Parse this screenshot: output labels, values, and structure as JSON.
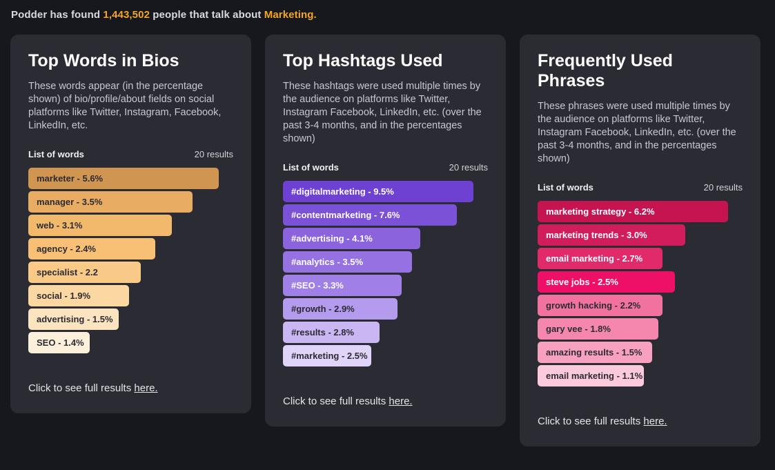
{
  "accent_color": "#f5a623",
  "header": {
    "prefix": "Podder has found ",
    "count": "1,443,502",
    "middle": " people that talk about ",
    "topic": "Marketing."
  },
  "cards": [
    {
      "title": "Top Words in Bios",
      "description": "These words appear (in the percentage shown) of bio/profile/about fields on social platforms like Twitter, Instagram, Facebook, LinkedIn, etc.",
      "list_label": "List of words",
      "results_count": "20 results",
      "footer_text": "Click to see full results ",
      "footer_link_label": "here.",
      "bars": [
        {
          "label": "marketer - 5.6%",
          "value": 5.6,
          "width_pct": 93,
          "color": "#d09551",
          "text_color": "#2b2b33"
        },
        {
          "label": "manager - 3.5%",
          "value": 3.5,
          "width_pct": 80,
          "color": "#e8ad63",
          "text_color": "#2b2b33"
        },
        {
          "label": "web - 3.1%",
          "value": 3.1,
          "width_pct": 70,
          "color": "#f2b96d",
          "text_color": "#2b2b33"
        },
        {
          "label": "agency - 2.4%",
          "value": 2.4,
          "width_pct": 62,
          "color": "#f8c075",
          "text_color": "#2b2b33"
        },
        {
          "label": "specialist - 2.2",
          "value": 2.2,
          "width_pct": 55,
          "color": "#f9ca87",
          "text_color": "#2b2b33"
        },
        {
          "label": "social - 1.9%",
          "value": 1.9,
          "width_pct": 49,
          "color": "#fbd7a1",
          "text_color": "#2b2b33"
        },
        {
          "label": "advertising - 1.5%",
          "value": 1.5,
          "width_pct": 44,
          "color": "#fce4c0",
          "text_color": "#2b2b33"
        },
        {
          "label": "SEO - 1.4%",
          "value": 1.4,
          "width_pct": 30,
          "color": "#fdf0da",
          "text_color": "#2b2b33"
        }
      ]
    },
    {
      "title": "Top Hashtags Used",
      "description": "These hashtags were used multiple times by the audience on platforms like Twitter, Instagram Facebook, LinkedIn, etc. (over the past 3-4 months, and in the percentages shown)",
      "list_label": "List of words",
      "results_count": "20 results",
      "footer_text": "Click to see full results ",
      "footer_link_label": "here.",
      "bars": [
        {
          "label": "#digitalmarketing - 9.5%",
          "value": 9.5,
          "width_pct": 93,
          "color": "#6e41d2",
          "text_color": "#ffffff"
        },
        {
          "label": "#contentmarketing - 7.6%",
          "value": 7.6,
          "width_pct": 85,
          "color": "#7b51d8",
          "text_color": "#ffffff"
        },
        {
          "label": "#advertising - 4.1%",
          "value": 4.1,
          "width_pct": 67,
          "color": "#8a63dd",
          "text_color": "#ffffff"
        },
        {
          "label": "#analytics - 3.5%",
          "value": 3.5,
          "width_pct": 63,
          "color": "#9571e2",
          "text_color": "#ffffff"
        },
        {
          "label": "#SEO - 3.3%",
          "value": 3.3,
          "width_pct": 58,
          "color": "#a080e7",
          "text_color": "#ffffff"
        },
        {
          "label": "#growth - 2.9%",
          "value": 2.9,
          "width_pct": 56,
          "color": "#b49bed",
          "text_color": "#2b2b33"
        },
        {
          "label": "#results - 2.8%",
          "value": 2.8,
          "width_pct": 47,
          "color": "#c9b6f3",
          "text_color": "#2b2b33"
        },
        {
          "label": "#marketing - 2.5%",
          "value": 2.5,
          "width_pct": 43,
          "color": "#e0d4f9",
          "text_color": "#2b2b33"
        }
      ]
    },
    {
      "title": "Frequently Used Phrases",
      "description": "These phrases were used multiple times by the audience on platforms like Twitter, Instagram Facebook, LinkedIn, etc. (over the past 3-4 months, and in the percentages shown)",
      "list_label": "List of words",
      "results_count": "20 results",
      "footer_text": "Click to see full results ",
      "footer_link_label": "here.",
      "bars": [
        {
          "label": "marketing strategy - 6.2%",
          "value": 6.2,
          "width_pct": 93,
          "color": "#c51450",
          "text_color": "#ffffff"
        },
        {
          "label": "marketing trends - 3.0%",
          "value": 3.0,
          "width_pct": 72,
          "color": "#d21d5c",
          "text_color": "#ffffff"
        },
        {
          "label": "email marketing - 2.7%",
          "value": 2.7,
          "width_pct": 61,
          "color": "#e02a6a",
          "text_color": "#ffffff"
        },
        {
          "label": "steve jobs - 2.5%",
          "value": 2.5,
          "width_pct": 67,
          "color": "#ee0f66",
          "text_color": "#ffffff"
        },
        {
          "label": "growth hacking - 2.2%",
          "value": 2.2,
          "width_pct": 61,
          "color": "#f2729f",
          "text_color": "#2b2b33"
        },
        {
          "label": "gary vee - 1.8%",
          "value": 1.8,
          "width_pct": 59,
          "color": "#f587ae",
          "text_color": "#2b2b33"
        },
        {
          "label": "amazing results - 1.5%",
          "value": 1.5,
          "width_pct": 56,
          "color": "#f8a0c0",
          "text_color": "#2b2b33"
        },
        {
          "label": "email marketing - 1.1%",
          "value": 1.1,
          "width_pct": 52,
          "color": "#fcc9dd",
          "text_color": "#2b2b33"
        }
      ]
    }
  ]
}
